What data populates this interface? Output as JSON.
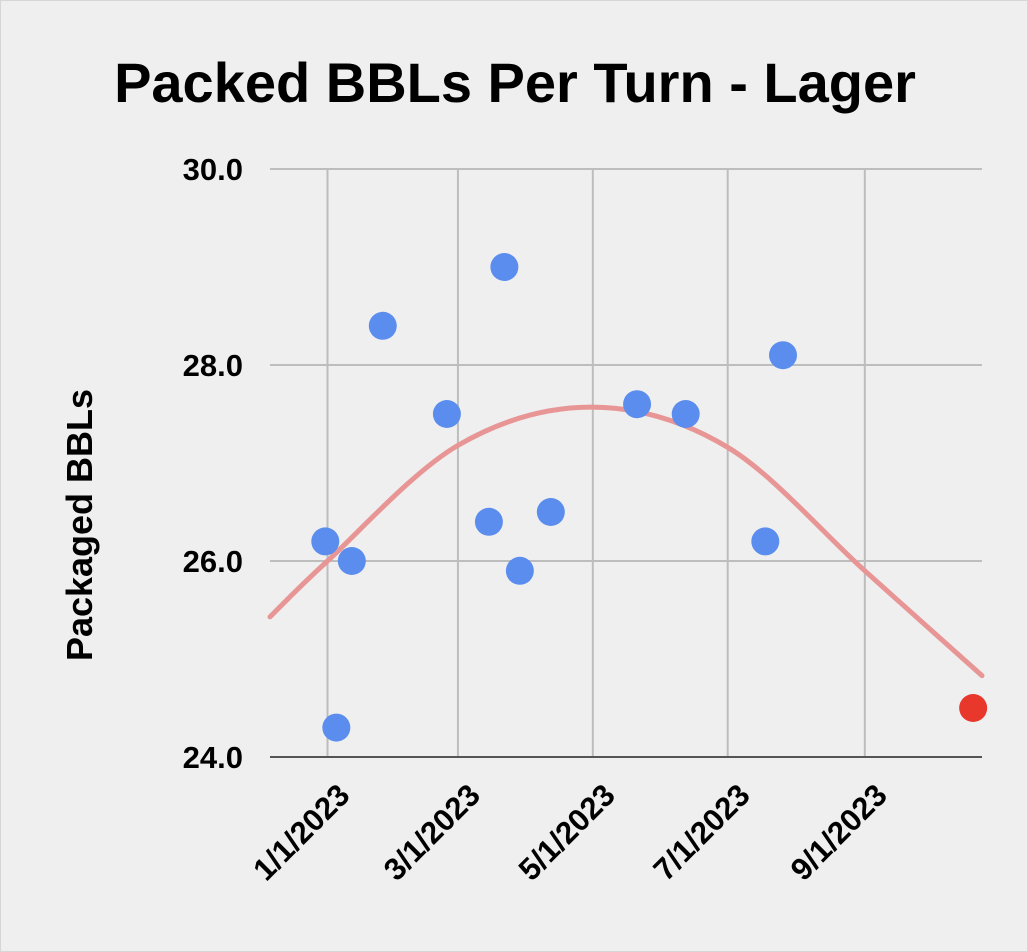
{
  "chart_data": {
    "type": "scatter",
    "title": "Packed BBLs Per Turn - Lager",
    "xlabel": "",
    "ylabel": "Packaged BBLs",
    "x_ticks": [
      "1/1/2023",
      "3/1/2023",
      "5/1/2023",
      "7/1/2023",
      "9/1/2023"
    ],
    "x_tick_dates": [
      "2023-01-01",
      "2023-03-01",
      "2023-05-01",
      "2023-07-01",
      "2023-09-01"
    ],
    "y_ticks": [
      "24.0",
      "26.0",
      "28.0",
      "30.0"
    ],
    "ylim": [
      24,
      30
    ],
    "xlim": [
      "2022-12-06",
      "2023-10-24"
    ],
    "grid": true,
    "series": [
      {
        "color": "#5b8def",
        "points": [
          {
            "x": "2022-12-31",
            "y": 26.2
          },
          {
            "x": "2023-01-05",
            "y": 24.3
          },
          {
            "x": "2023-01-12",
            "y": 26.0
          },
          {
            "x": "2023-01-26",
            "y": 28.4
          },
          {
            "x": "2023-02-24",
            "y": 27.5
          },
          {
            "x": "2023-03-15",
            "y": 26.4
          },
          {
            "x": "2023-03-22",
            "y": 29.0
          },
          {
            "x": "2023-03-29",
            "y": 25.9
          },
          {
            "x": "2023-04-12",
            "y": 26.5
          },
          {
            "x": "2023-05-21",
            "y": 27.6
          },
          {
            "x": "2023-06-12",
            "y": 27.5
          },
          {
            "x": "2023-07-18",
            "y": 26.2
          },
          {
            "x": "2023-07-26",
            "y": 28.1
          }
        ]
      },
      {
        "color": "#e8372b",
        "points": [
          {
            "x": "2023-10-20",
            "y": 24.5
          }
        ]
      }
    ],
    "trendline": {
      "type": "polynomial",
      "color": "#e89595",
      "points": [
        {
          "x": "2022-12-06",
          "y": 25.43
        },
        {
          "x": "2023-01-01",
          "y": 26.0
        },
        {
          "x": "2023-03-01",
          "y": 27.18
        },
        {
          "x": "2023-05-01",
          "y": 27.57
        },
        {
          "x": "2023-07-01",
          "y": 27.16
        },
        {
          "x": "2023-09-01",
          "y": 25.9
        },
        {
          "x": "2023-10-24",
          "y": 24.83
        }
      ]
    }
  }
}
